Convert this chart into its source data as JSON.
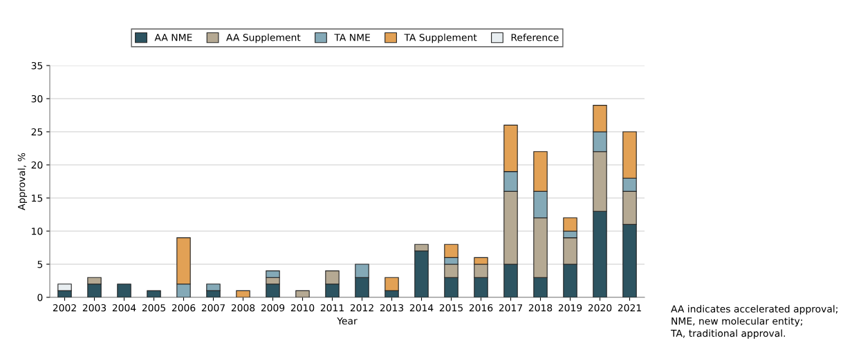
{
  "chart_data": {
    "type": "bar",
    "stacked": true,
    "xlabel": "Year",
    "ylabel": "Approval, %",
    "categories": [
      "2002",
      "2003",
      "2004",
      "2005",
      "2006",
      "2007",
      "2008",
      "2009",
      "2010",
      "2011",
      "2012",
      "2013",
      "2014",
      "2015",
      "2016",
      "2017",
      "2018",
      "2019",
      "2020",
      "2021"
    ],
    "series": [
      {
        "name": "AA NME",
        "color": "#2d5461",
        "values": [
          1,
          2,
          2,
          1,
          0,
          1,
          0,
          2,
          0,
          2,
          3,
          1,
          7,
          3,
          3,
          5,
          3,
          5,
          13,
          11
        ]
      },
      {
        "name": "AA Supplement",
        "color": "#b5a993",
        "values": [
          0,
          1,
          0,
          0,
          0,
          0,
          0,
          1,
          1,
          2,
          0,
          0,
          1,
          2,
          2,
          11,
          9,
          4,
          9,
          5
        ]
      },
      {
        "name": "TA NME",
        "color": "#84a9b7",
        "values": [
          0,
          0,
          0,
          0,
          2,
          1,
          0,
          1,
          0,
          0,
          2,
          0,
          0,
          1,
          0,
          3,
          4,
          1,
          3,
          2
        ]
      },
      {
        "name": "TA Supplement",
        "color": "#e2a155",
        "values": [
          0,
          0,
          0,
          0,
          7,
          0,
          1,
          0,
          0,
          0,
          0,
          2,
          0,
          2,
          1,
          7,
          6,
          2,
          4,
          7
        ]
      },
      {
        "name": "Reference",
        "color": "#e8eef1",
        "values": [
          1,
          0,
          0,
          0,
          0,
          0,
          0,
          0,
          0,
          0,
          0,
          0,
          0,
          0,
          0,
          0,
          0,
          0,
          0,
          0
        ]
      }
    ],
    "ylim": [
      0,
      35
    ],
    "yticks": [
      0,
      5,
      10,
      15,
      20,
      25,
      30,
      35
    ],
    "grid": "y",
    "legend": "top",
    "annotations": [
      "AA indicates accelerated approval;\nNME, new molecular entity;\nTA, traditional approval."
    ]
  }
}
